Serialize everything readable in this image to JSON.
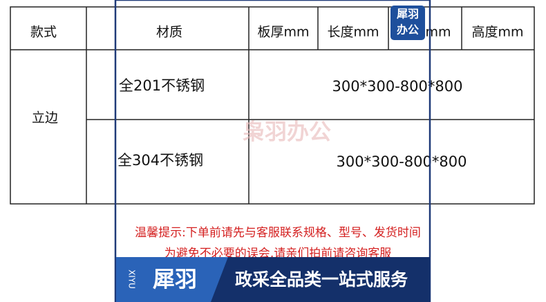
{
  "table": {
    "header": [
      "款式",
      "材质",
      "板厚mm",
      "长度mm",
      "宽度mm",
      "高度mm"
    ],
    "style": "立边",
    "rows": [
      [
        "全201不锈钢",
        "300*300-800*800"
      ],
      [
        "全304不锈钢",
        "300*300-800*800"
      ]
    ]
  },
  "badge": [
    "犀羽",
    "办公"
  ],
  "watermark": "枭羽办公",
  "notice": [
    "温馨提示:下单前请先与客服联系规格、型号、发货时间",
    "为避免不必要的误会,请亲们拍前请咨询客服"
  ],
  "banner": {
    "brand_en": "XIYU",
    "brand": "犀羽",
    "slogan": "政采全品类一站式服务"
  }
}
